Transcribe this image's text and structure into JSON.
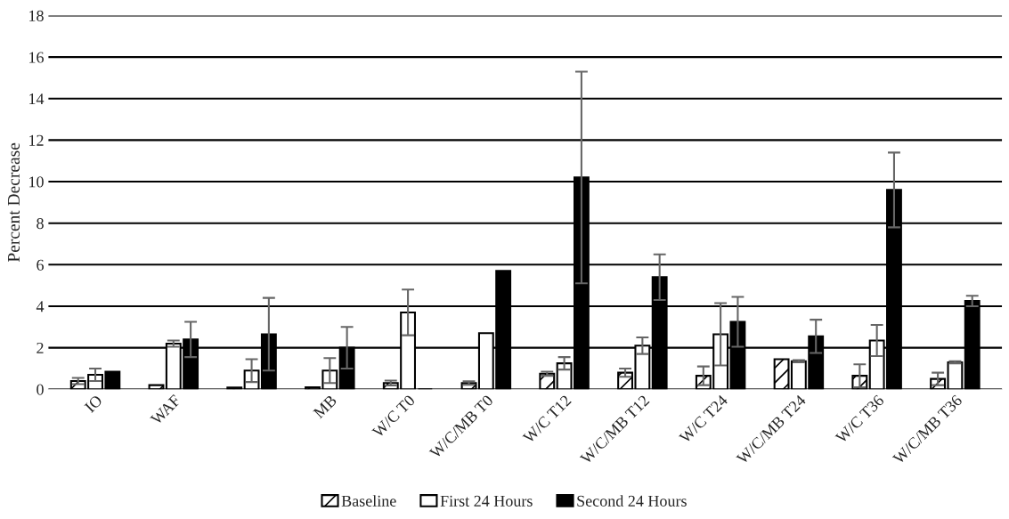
{
  "chart_data": {
    "type": "bar",
    "ylabel": "Percent Decrease",
    "categories": [
      "IO",
      "WAF",
      null,
      "MB",
      "W/C T0",
      "W/C/MB T0",
      "W/C T12",
      "W/C/MB T12",
      "W/C T24",
      "W/C/MB T24",
      "W/C T36",
      "W/C/MB T36"
    ],
    "series": [
      {
        "name": "Baseline",
        "color": "#000000",
        "values": [
          0.4,
          0.2,
          0.08,
          0.1,
          0.3,
          0.3,
          0.75,
          0.8,
          0.65,
          1.45,
          0.65,
          0.5
        ],
        "errors": [
          0.15,
          null,
          null,
          null,
          0.12,
          0.08,
          0.1,
          0.2,
          0.45,
          null,
          0.55,
          0.3
        ]
      },
      {
        "name": "First 24 Hours",
        "color": "#ffffff",
        "values": [
          0.7,
          2.2,
          0.9,
          0.9,
          3.7,
          2.7,
          1.25,
          2.1,
          2.65,
          1.35,
          2.35,
          1.3
        ],
        "errors": [
          0.3,
          0.15,
          0.55,
          0.6,
          1.1,
          null,
          0.3,
          0.4,
          1.5,
          0.05,
          0.75,
          0.05
        ]
      },
      {
        "name": "Second 24 Hours",
        "color": "#000000",
        "values": [
          0.85,
          2.4,
          2.65,
          2.0,
          0,
          5.7,
          10.2,
          5.4,
          3.25,
          2.55,
          9.6,
          4.25
        ],
        "errors": [
          null,
          0.85,
          1.75,
          1.0,
          null,
          null,
          5.1,
          1.1,
          1.2,
          0.8,
          1.8,
          0.25
        ]
      }
    ],
    "ylim": [
      0,
      18
    ],
    "yticks": [
      0,
      2,
      4,
      6,
      8,
      10,
      12,
      14,
      16,
      18
    ],
    "grid": "y",
    "legend": "bottom"
  }
}
